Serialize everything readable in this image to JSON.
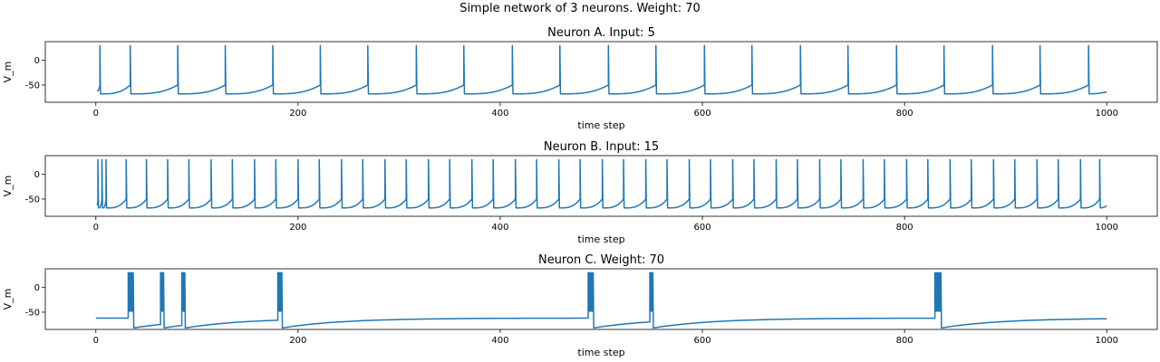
{
  "figure": {
    "suptitle": "Simple network of 3 neurons. Weight: 70"
  },
  "style": {
    "line_color": "#1f77b4",
    "axis_color": "#000000",
    "background": "#ffffff"
  },
  "chart_data": [
    {
      "type": "line",
      "title": "Neuron A. Input: 5",
      "xlabel": "time step",
      "ylabel": "V_m",
      "xlim": [
        -50,
        1050
      ],
      "ylim": [
        -85,
        38
      ],
      "xticks": [
        0,
        200,
        400,
        600,
        800,
        1000
      ],
      "yticks": [
        0,
        -50
      ],
      "grid": false,
      "legend": "none",
      "series": [
        {
          "model": "spiking",
          "x_range": [
            0,
            1000
          ],
          "v_reset": -68,
          "v_start": -62,
          "v_pre_spike": -50,
          "v_peak": 30,
          "spike_times": [
            4,
            34,
            81,
            128,
            175,
            222,
            269,
            317,
            364,
            412,
            459,
            507,
            554,
            602,
            649,
            697,
            744,
            792,
            839,
            887,
            934,
            982
          ]
        }
      ]
    },
    {
      "type": "line",
      "title": "Neuron B. Input: 15",
      "xlabel": "time step",
      "ylabel": "V_m",
      "xlim": [
        -50,
        1050
      ],
      "ylim": [
        -85,
        38
      ],
      "xticks": [
        0,
        200,
        400,
        600,
        800,
        1000
      ],
      "yticks": [
        0,
        -50
      ],
      "grid": false,
      "legend": "none",
      "series": [
        {
          "model": "spiking",
          "x_range": [
            0,
            1000
          ],
          "v_reset": -68,
          "v_start": -62,
          "v_pre_spike": -50,
          "v_peak": 30,
          "spike_times": [
            2,
            6,
            10,
            30,
            50,
            71,
            92,
            114,
            135,
            157,
            178,
            200,
            221,
            243,
            264,
            286,
            307,
            329,
            350,
            372,
            393,
            415,
            436,
            458,
            479,
            501,
            522,
            544,
            565,
            587,
            608,
            630,
            651,
            673,
            694,
            716,
            737,
            759,
            780,
            802,
            823,
            845,
            866,
            888,
            909,
            931,
            952,
            974,
            993
          ]
        }
      ]
    },
    {
      "type": "line",
      "title": "Neuron C. Weight: 70",
      "xlabel": "time step",
      "ylabel": "V_m",
      "xlim": [
        -50,
        1050
      ],
      "ylim": [
        -85,
        38
      ],
      "xticks": [
        0,
        200,
        400,
        600,
        800,
        1000
      ],
      "yticks": [
        0,
        -50
      ],
      "grid": false,
      "legend": "none",
      "series": [
        {
          "model": "bursting",
          "x_range": [
            0,
            1000
          ],
          "v_rest": -62,
          "v_after": -82,
          "v_peak": 30,
          "v_floor": -48,
          "bursts": [
            [
              32,
              37
            ],
            [
              64,
              67
            ],
            [
              85,
              88
            ],
            [
              180,
              184
            ],
            [
              487,
              492
            ],
            [
              548,
              551
            ],
            [
              830,
              836
            ]
          ]
        }
      ]
    }
  ]
}
